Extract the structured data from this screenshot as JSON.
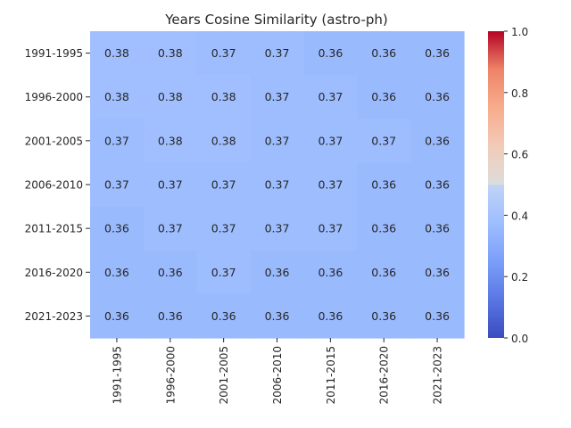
{
  "chart_data": {
    "type": "heatmap",
    "title": "Years Cosine Similarity (astro-ph)",
    "xlabel": "",
    "ylabel": "",
    "x_categories": [
      "1991-1995",
      "1996-2000",
      "2001-2005",
      "2006-2010",
      "2011-2015",
      "2016-2020",
      "2021-2023"
    ],
    "y_categories": [
      "1991-1995",
      "1996-2000",
      "2001-2005",
      "2006-2010",
      "2011-2015",
      "2016-2020",
      "2021-2023"
    ],
    "values": [
      [
        0.38,
        0.38,
        0.37,
        0.37,
        0.36,
        0.36,
        0.36
      ],
      [
        0.38,
        0.38,
        0.38,
        0.37,
        0.37,
        0.36,
        0.36
      ],
      [
        0.37,
        0.38,
        0.38,
        0.37,
        0.37,
        0.37,
        0.36
      ],
      [
        0.37,
        0.37,
        0.37,
        0.37,
        0.37,
        0.36,
        0.36
      ],
      [
        0.36,
        0.37,
        0.37,
        0.37,
        0.37,
        0.36,
        0.36
      ],
      [
        0.36,
        0.36,
        0.37,
        0.36,
        0.36,
        0.36,
        0.36
      ],
      [
        0.36,
        0.36,
        0.36,
        0.36,
        0.36,
        0.36,
        0.36
      ]
    ],
    "value_range": [
      0.0,
      1.0
    ],
    "colormap": "coolwarm",
    "colorbar_ticks": [
      "0.0",
      "0.2",
      "0.4",
      "0.6",
      "0.8",
      "1.0"
    ],
    "grid": false
  }
}
